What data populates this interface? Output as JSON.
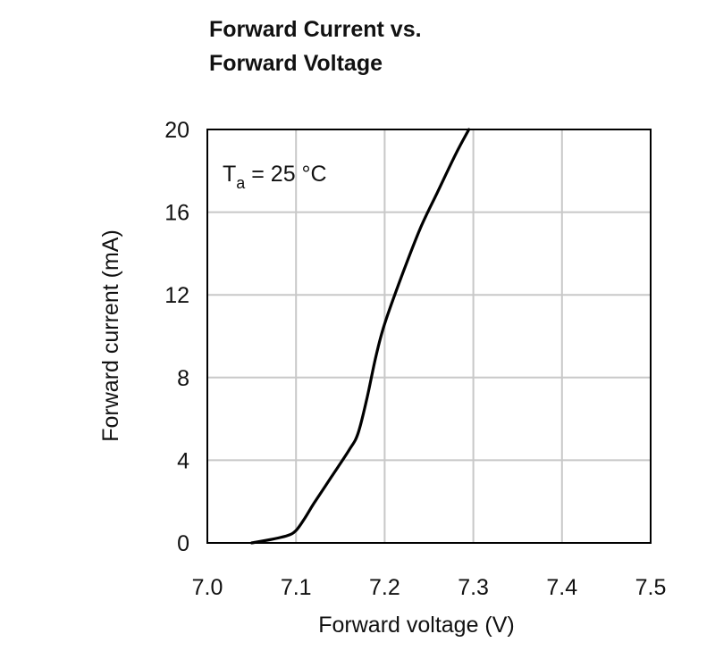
{
  "chart_data": {
    "type": "line",
    "title_lines": [
      "Forward Current vs.",
      "Forward Voltage"
    ],
    "xlabel": "Forward voltage (V)",
    "ylabel": "Forward current (mA)",
    "xlim": [
      7.0,
      7.5
    ],
    "ylim": [
      0,
      20
    ],
    "xticks": [
      "7.0",
      "7.1",
      "7.2",
      "7.3",
      "7.4",
      "7.5"
    ],
    "yticks": [
      "0",
      "4",
      "8",
      "12",
      "16",
      "20"
    ],
    "grid": true,
    "annotation": {
      "base": "T",
      "sub": "a",
      "rest": " = 25 °C"
    },
    "series": [
      {
        "color": "#000000",
        "points": [
          [
            7.05,
            0.0
          ],
          [
            7.07,
            0.15
          ],
          [
            7.09,
            0.35
          ],
          [
            7.1,
            0.6
          ],
          [
            7.11,
            1.2
          ],
          [
            7.12,
            1.9
          ],
          [
            7.14,
            3.2
          ],
          [
            7.16,
            4.5
          ],
          [
            7.17,
            5.3
          ],
          [
            7.18,
            7.0
          ],
          [
            7.19,
            9.0
          ],
          [
            7.2,
            10.6
          ],
          [
            7.22,
            13.0
          ],
          [
            7.24,
            15.2
          ],
          [
            7.26,
            17.0
          ],
          [
            7.28,
            18.8
          ],
          [
            7.295,
            20.0
          ]
        ]
      }
    ]
  }
}
